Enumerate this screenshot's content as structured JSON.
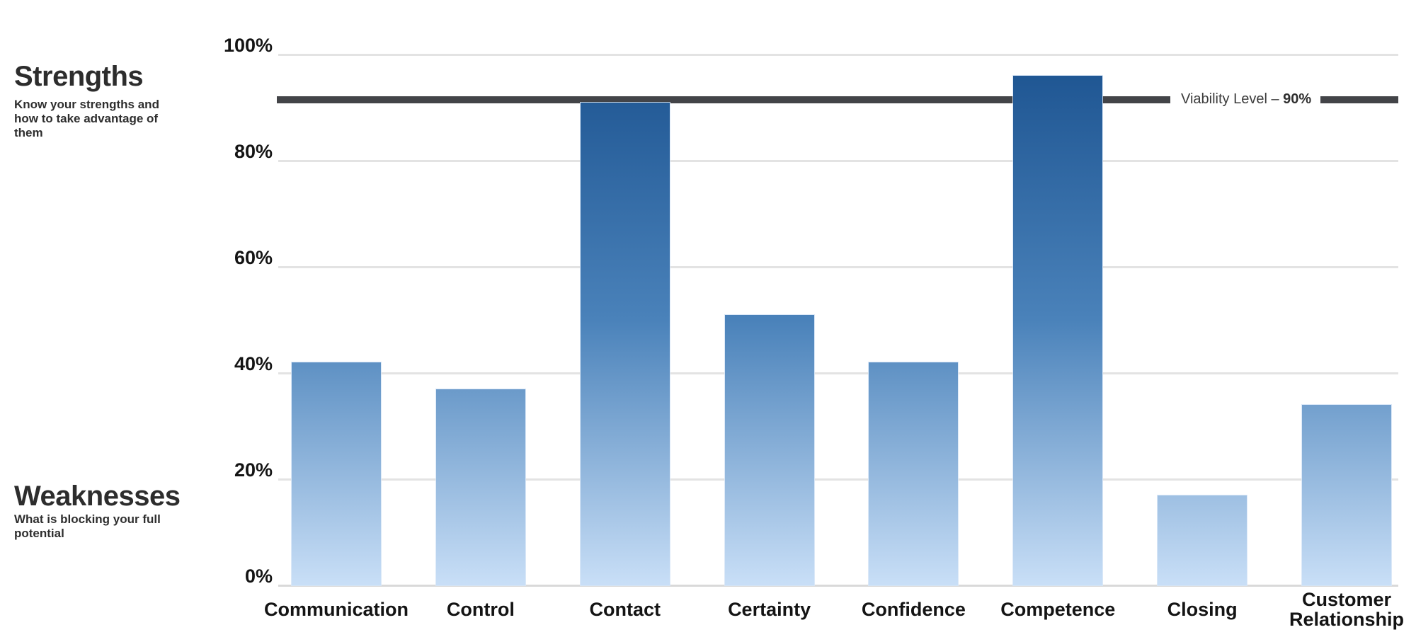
{
  "sidebar": {
    "strengths_title": "Strengths",
    "strengths_subtitle": "Know your strengths and how to take advantage of them",
    "weaknesses_title": "Weaknesses",
    "weaknesses_subtitle": "What is blocking your full potential"
  },
  "chart_data": {
    "type": "bar",
    "categories": [
      "Communication",
      "Control",
      "Contact",
      "Certainty",
      "Confidence",
      "Competence",
      "Closing",
      "Customer Relationship"
    ],
    "values": [
      42,
      37,
      91,
      51,
      42,
      96,
      17,
      34
    ],
    "y_ticks": [
      "0%",
      "20%",
      "40%",
      "60%",
      "80%",
      "100%"
    ],
    "ylim": [
      0,
      100
    ],
    "grid": true,
    "reference_line": {
      "label_prefix": "Viability Level – ",
      "label_value": "90%",
      "value": 90,
      "drawn_at_percent": 91.5
    },
    "colors": {
      "bar_gradient_top": "#1c5390",
      "bar_gradient_mid": "#4a82ba",
      "bar_gradient_bottom": "#c9dff7",
      "reference_line": "#434448",
      "gridline": "#e3e3e3"
    }
  }
}
